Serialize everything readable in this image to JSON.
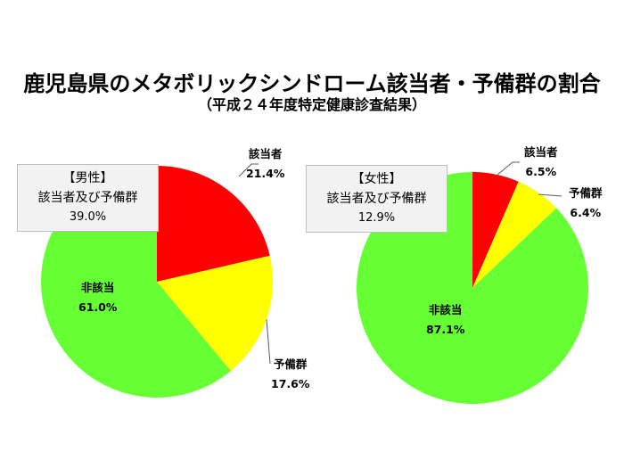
{
  "title": "鹿児島県のメタボリックシンドローム該当者・予備群の割合",
  "subtitle": "（平成２４年度特定健康診査結果）",
  "colors": {
    "applicable": "#ff0000",
    "reserve": "#ffff00",
    "non_applicable": "#66ff33"
  },
  "male": {
    "box_heading": "【男性】",
    "box_label": "該当者及び予備群",
    "box_value": "39.0%",
    "slices": [
      {
        "label": "該当者",
        "value": "21.4%"
      },
      {
        "label": "予備群",
        "value": "17.6%"
      },
      {
        "label": "非該当",
        "value": "61.0%"
      }
    ]
  },
  "female": {
    "box_heading": "【女性】",
    "box_label": "該当者及び予備群",
    "box_value": "12.9%",
    "slices": [
      {
        "label": "該当者",
        "value": "6.5%"
      },
      {
        "label": "予備群",
        "value": "6.4%"
      },
      {
        "label": "非該当",
        "value": "87.1%"
      }
    ]
  },
  "chart_data": [
    {
      "type": "pie",
      "title": "【男性】 該当者及び予備群 39.0%",
      "categories": [
        "該当者",
        "予備群",
        "非該当"
      ],
      "values": [
        21.4,
        17.6,
        61.0
      ],
      "colors": [
        "#ff0000",
        "#ffff00",
        "#66ff33"
      ],
      "start_angle": "12 o'clock, clockwise"
    },
    {
      "type": "pie",
      "title": "【女性】 該当者及び予備群 12.9%",
      "categories": [
        "該当者",
        "予備群",
        "非該当"
      ],
      "values": [
        6.5,
        6.4,
        87.1
      ],
      "colors": [
        "#ff0000",
        "#ffff00",
        "#66ff33"
      ],
      "start_angle": "12 o'clock, clockwise"
    }
  ]
}
